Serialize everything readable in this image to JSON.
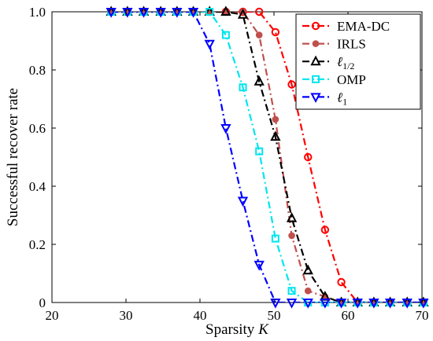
{
  "chart_data": {
    "type": "line",
    "xlabel": "Sparsity",
    "xlabel_var": "K",
    "ylabel": "Successful recover rate",
    "xlim": [
      20,
      70
    ],
    "ylim": [
      0,
      1
    ],
    "xticks": [
      "20",
      "30",
      "40",
      "50",
      "60",
      "70"
    ],
    "yticks": [
      "0",
      "0.2",
      "0.4",
      "0.6",
      "0.8",
      "1.0"
    ],
    "grid": false,
    "legend_position": "top-right",
    "series": [
      {
        "name": "EMA-DC",
        "legend_base": "EMA-DC",
        "legend_sub": "",
        "color": "#ff0000",
        "marker": "open-circle",
        "dash": "dot-dash",
        "x": [
          28,
          30.2,
          32.4,
          34.7,
          36.9,
          39.1,
          41.3,
          43.5,
          45.8,
          48,
          50.2,
          52.4,
          54.6,
          56.9,
          59.1,
          61.3,
          63.5,
          65.7,
          68,
          70.2
        ],
        "y": [
          1,
          1,
          1,
          1,
          1,
          1,
          1,
          1,
          1,
          1,
          0.93,
          0.75,
          0.5,
          0.25,
          0.07,
          0,
          0,
          0,
          0,
          0
        ]
      },
      {
        "name": "IRLS",
        "legend_base": "IRLS",
        "legend_sub": "",
        "color": "#c0504d",
        "marker": "filled-circle",
        "dash": "dot-dash",
        "x": [
          28,
          30.2,
          32.4,
          34.7,
          36.9,
          39.1,
          41.3,
          43.5,
          45.8,
          48,
          50.2,
          52.4,
          54.6,
          56.9,
          59.1,
          61.3,
          63.5,
          65.7,
          68,
          70.2
        ],
        "y": [
          1,
          1,
          1,
          1,
          1,
          1,
          1,
          1,
          1,
          0.92,
          0.63,
          0.23,
          0.04,
          0.02,
          0,
          0,
          0,
          0,
          0,
          0
        ]
      },
      {
        "name": "ℓ1/2",
        "legend_base": "ℓ",
        "legend_sub": "1/2",
        "color": "#000000",
        "marker": "open-triangle-up",
        "dash": "dot-dash",
        "x": [
          28,
          30.2,
          32.4,
          34.7,
          36.9,
          39.1,
          41.3,
          43.5,
          45.8,
          48,
          50.2,
          52.4,
          54.6,
          56.9,
          59.1,
          61.3,
          63.5,
          65.7,
          68,
          70.2
        ],
        "y": [
          1,
          1,
          1,
          1,
          1,
          1,
          1,
          1,
          0.99,
          0.76,
          0.57,
          0.29,
          0.11,
          0.02,
          0,
          0,
          0,
          0,
          0,
          0
        ]
      },
      {
        "name": "OMP",
        "legend_base": "OMP",
        "legend_sub": "",
        "color": "#00e5ee",
        "marker": "open-square",
        "dash": "dot-dash",
        "x": [
          28,
          30.2,
          32.4,
          34.7,
          36.9,
          39.1,
          41.3,
          43.5,
          45.8,
          48,
          50.2,
          52.4,
          54.6,
          56.9,
          59.1,
          61.3,
          63.5,
          65.7,
          68,
          70.2
        ],
        "y": [
          1,
          1,
          1,
          1,
          1,
          1,
          1,
          0.92,
          0.74,
          0.52,
          0.22,
          0.04,
          0,
          0,
          0,
          0,
          0,
          0,
          0,
          0
        ]
      },
      {
        "name": "ℓ1",
        "legend_base": "ℓ",
        "legend_sub": "1",
        "color": "#0000ff",
        "marker": "open-triangle-down",
        "dash": "dot-dash",
        "x": [
          28,
          30.2,
          32.4,
          34.7,
          36.9,
          39.1,
          41.3,
          43.5,
          45.8,
          48,
          50.2,
          52.4,
          54.6,
          56.9,
          59.1,
          61.3,
          63.5,
          65.7,
          68,
          70.2
        ],
        "y": [
          1,
          1,
          1,
          1,
          1,
          1,
          0.89,
          0.6,
          0.35,
          0.13,
          0,
          0,
          0,
          0,
          0,
          0,
          0,
          0,
          0,
          0
        ]
      }
    ]
  }
}
